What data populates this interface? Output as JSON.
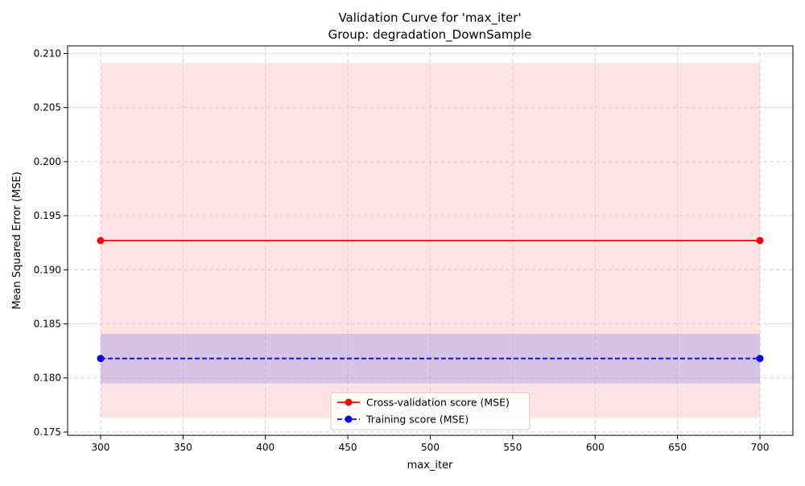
{
  "chart_data": {
    "type": "line",
    "title": "Validation Curve for 'max_iter'",
    "subtitle": "Group: degradation_DownSample",
    "xlabel": "max_iter",
    "ylabel": "Mean Squared Error (MSE)",
    "xlim": [
      280,
      720
    ],
    "ylim": [
      0.1747,
      0.2107
    ],
    "x_ticks": [
      300,
      350,
      400,
      450,
      500,
      550,
      600,
      650,
      700
    ],
    "y_ticks": [
      0.175,
      0.18,
      0.185,
      0.19,
      0.195,
      0.2,
      0.205,
      0.21
    ],
    "grid": true,
    "legend_position": "bottom-center",
    "x": [
      300,
      700
    ],
    "series": [
      {
        "name": "Cross-validation score (MSE)",
        "values": [
          0.1927,
          0.1927
        ],
        "band_low": [
          0.1763,
          0.1763
        ],
        "band_high": [
          0.2091,
          0.2091
        ],
        "color": "#ff0000",
        "band_color": "#ffc0c4",
        "line_style": "solid",
        "marker": "circle"
      },
      {
        "name": "Training score (MSE)",
        "values": [
          0.1818,
          0.1818
        ],
        "band_low": [
          0.1795,
          0.1795
        ],
        "band_high": [
          0.1841,
          0.1841
        ],
        "color": "#0000ff",
        "band_color": "#8d8ae6",
        "line_style": "dashed",
        "marker": "circle"
      }
    ]
  }
}
